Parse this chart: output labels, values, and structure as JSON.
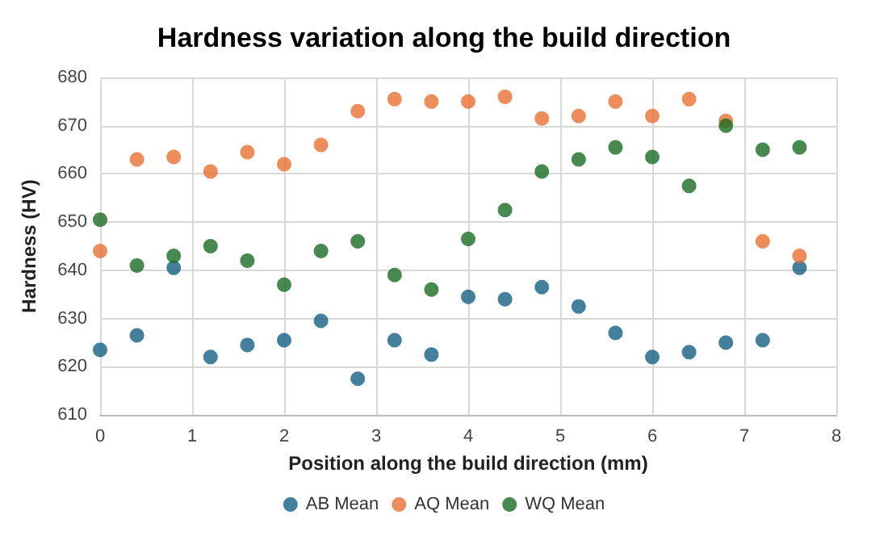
{
  "chart_data": {
    "type": "scatter",
    "title": "Hardness variation along the build direction",
    "xlabel": "Position along the build direction (mm)",
    "ylabel": "Hardness (HV)",
    "x": [
      0,
      0.4,
      0.8,
      1.2,
      1.6,
      2,
      2.4,
      2.8,
      3.2,
      3.6,
      4,
      4.4,
      4.8,
      5.2,
      5.6,
      6,
      6.4,
      6.8,
      7.2,
      7.6
    ],
    "series": [
      {
        "name": "AB Mean",
        "color": "#156082",
        "values": [
          623.5,
          626.5,
          640.5,
          622,
          624.5,
          625.5,
          629.5,
          617.5,
          625.5,
          622.5,
          634.5,
          634,
          636.5,
          632.5,
          627,
          622,
          623,
          625,
          625.5,
          640.5
        ]
      },
      {
        "name": "AQ Mean",
        "color": "#e97132",
        "values": [
          644,
          663,
          663.5,
          660.5,
          664.5,
          662,
          666,
          673,
          675.5,
          675,
          675,
          676,
          671.5,
          672,
          675,
          672,
          675.5,
          671,
          646,
          643
        ]
      },
      {
        "name": "WQ Mean",
        "color": "#196b24",
        "values": [
          650.5,
          641,
          643,
          645,
          642,
          637,
          644,
          646,
          639,
          636,
          646.5,
          652.5,
          660.5,
          663,
          665.5,
          663.5,
          657.5,
          670,
          665,
          665.5
        ]
      }
    ],
    "xlim": [
      0,
      8
    ],
    "xticks": [
      0,
      1,
      2,
      3,
      4,
      5,
      6,
      7,
      8
    ],
    "ylim": [
      610,
      680
    ],
    "yticks": [
      610,
      620,
      630,
      640,
      650,
      660,
      670,
      680
    ],
    "grid": true,
    "legend": "bottom",
    "marker": "circle"
  }
}
